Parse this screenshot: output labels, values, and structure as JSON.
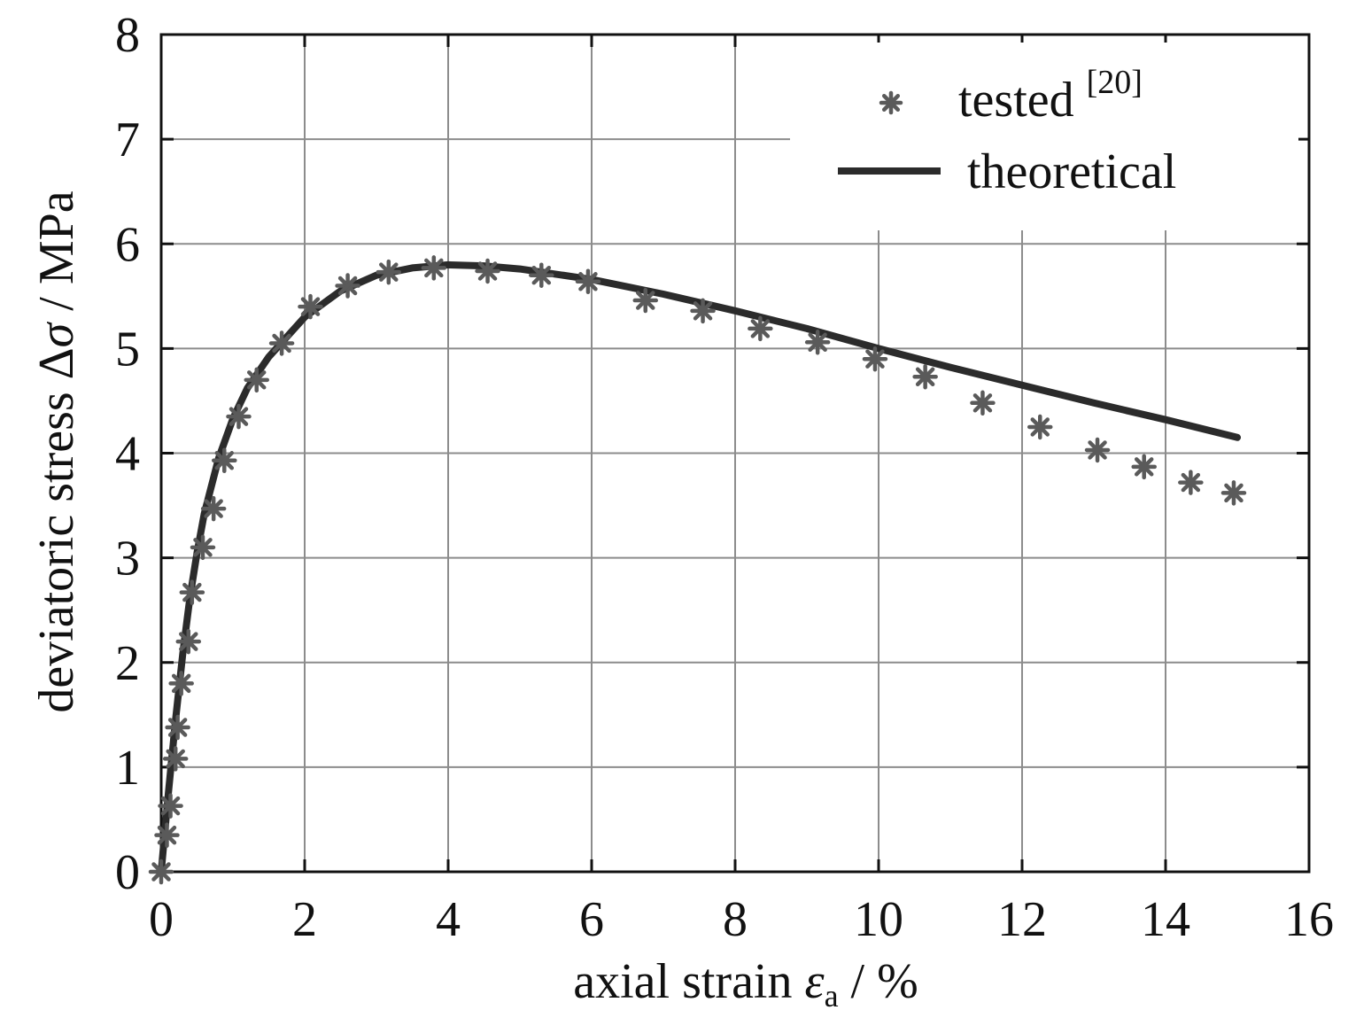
{
  "chart_data": {
    "type": "line",
    "xlabel": {
      "prefix": "axial strain ",
      "symbol": "ε",
      "subscript": "a",
      "suffix": " / %"
    },
    "ylabel": {
      "prefix": "deviatoric stress ",
      "symbol": "Δ",
      "symbol2": "σ",
      "suffix": " / MPa"
    },
    "xlim": [
      0,
      16
    ],
    "ylim": [
      0,
      8
    ],
    "xticks": [
      "0",
      "2",
      "4",
      "6",
      "8",
      "10",
      "12",
      "14",
      "16"
    ],
    "yticks": [
      "0",
      "1",
      "2",
      "3",
      "4",
      "5",
      "6",
      "7",
      "8"
    ],
    "grid": true,
    "legend_position": "top-right",
    "legend": [
      {
        "label": "tested ",
        "sup": "[20]",
        "marker": "asterisk"
      },
      {
        "label": "theoretical",
        "marker": "line"
      }
    ],
    "series": [
      {
        "name": "tested [20]",
        "kind": "scatter",
        "color": "#5a5a5a",
        "points": [
          [
            0.0,
            0.0
          ],
          [
            0.08,
            0.35
          ],
          [
            0.13,
            0.63
          ],
          [
            0.2,
            1.08
          ],
          [
            0.23,
            1.38
          ],
          [
            0.28,
            1.8
          ],
          [
            0.38,
            2.2
          ],
          [
            0.43,
            2.67
          ],
          [
            0.58,
            3.1
          ],
          [
            0.73,
            3.47
          ],
          [
            0.88,
            3.93
          ],
          [
            1.08,
            4.35
          ],
          [
            1.33,
            4.7
          ],
          [
            1.68,
            5.05
          ],
          [
            2.08,
            5.4
          ],
          [
            2.6,
            5.6
          ],
          [
            3.17,
            5.73
          ],
          [
            3.8,
            5.77
          ],
          [
            4.55,
            5.74
          ],
          [
            5.3,
            5.7
          ],
          [
            5.95,
            5.64
          ],
          [
            6.75,
            5.46
          ],
          [
            7.55,
            5.36
          ],
          [
            8.35,
            5.19
          ],
          [
            9.15,
            5.06
          ],
          [
            9.95,
            4.9
          ],
          [
            10.65,
            4.73
          ],
          [
            11.45,
            4.48
          ],
          [
            12.25,
            4.25
          ],
          [
            13.05,
            4.03
          ],
          [
            13.7,
            3.87
          ],
          [
            14.35,
            3.72
          ],
          [
            14.95,
            3.62
          ]
        ]
      },
      {
        "name": "theoretical",
        "kind": "line",
        "color": "#2b2b2b",
        "points": [
          [
            0.0,
            0.0
          ],
          [
            0.1,
            0.75
          ],
          [
            0.2,
            1.45
          ],
          [
            0.3,
            2.08
          ],
          [
            0.4,
            2.62
          ],
          [
            0.5,
            3.05
          ],
          [
            0.6,
            3.42
          ],
          [
            0.8,
            3.95
          ],
          [
            1.0,
            4.33
          ],
          [
            1.2,
            4.62
          ],
          [
            1.5,
            4.92
          ],
          [
            2.0,
            5.3
          ],
          [
            2.5,
            5.55
          ],
          [
            3.0,
            5.7
          ],
          [
            3.5,
            5.77
          ],
          [
            4.0,
            5.8
          ],
          [
            4.5,
            5.79
          ],
          [
            5.0,
            5.76
          ],
          [
            6.0,
            5.66
          ],
          [
            7.0,
            5.52
          ],
          [
            8.0,
            5.36
          ],
          [
            9.0,
            5.19
          ],
          [
            10.0,
            5.0
          ],
          [
            11.0,
            4.82
          ],
          [
            12.0,
            4.65
          ],
          [
            13.0,
            4.48
          ],
          [
            14.0,
            4.32
          ],
          [
            15.0,
            4.15
          ]
        ]
      }
    ]
  }
}
